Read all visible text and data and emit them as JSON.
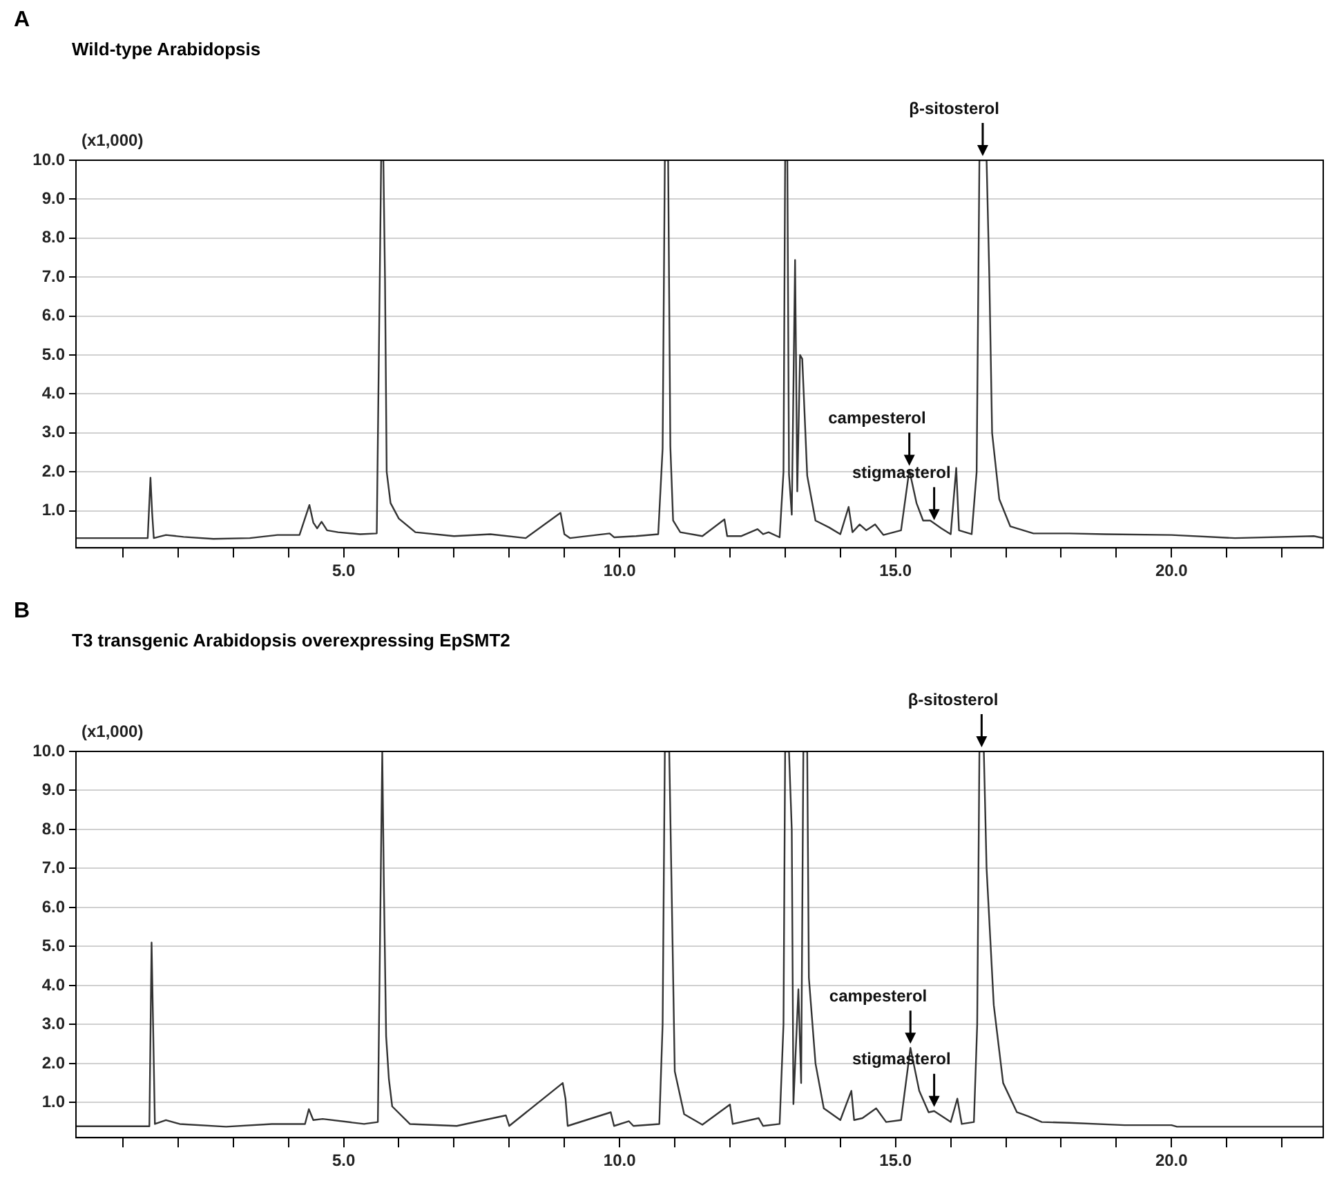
{
  "chart_data": [
    {
      "type": "line",
      "title": "A",
      "subtitle": "Wild-type Arabidopsis",
      "ylabel": "(x1,000)",
      "marker": "none",
      "line_style": "solid",
      "grid": "y",
      "legend": false,
      "xlim": [
        0.15,
        22.75
      ],
      "ylim": [
        0.05,
        10
      ],
      "xticks": [
        {
          "value": 1,
          "label": null
        },
        {
          "value": 2,
          "label": null
        },
        {
          "value": 3,
          "label": null
        },
        {
          "value": 4,
          "label": null
        },
        {
          "value": 5,
          "label": "5.0"
        },
        {
          "value": 6,
          "label": null
        },
        {
          "value": 7,
          "label": null
        },
        {
          "value": 8,
          "label": null
        },
        {
          "value": 9,
          "label": null
        },
        {
          "value": 10,
          "label": "10.0"
        },
        {
          "value": 11,
          "label": null
        },
        {
          "value": 12,
          "label": null
        },
        {
          "value": 13,
          "label": null
        },
        {
          "value": 14,
          "label": null
        },
        {
          "value": 15,
          "label": "15.0"
        },
        {
          "value": 16,
          "label": null
        },
        {
          "value": 17,
          "label": null
        },
        {
          "value": 18,
          "label": null
        },
        {
          "value": 19,
          "label": null
        },
        {
          "value": 20,
          "label": "20.0"
        },
        {
          "value": 21,
          "label": null
        },
        {
          "value": 22,
          "label": null
        }
      ],
      "yticks": [
        {
          "value": 1,
          "label": "1.0"
        },
        {
          "value": 2,
          "label": "2.0"
        },
        {
          "value": 3,
          "label": "3.0"
        },
        {
          "value": 4,
          "label": "4.0"
        },
        {
          "value": 5,
          "label": "5.0"
        },
        {
          "value": 6,
          "label": "6.0"
        },
        {
          "value": 7,
          "label": "7.0"
        },
        {
          "value": 8,
          "label": "8.0"
        },
        {
          "value": 9,
          "label": "9.0"
        },
        {
          "value": 10,
          "label": "10.0"
        }
      ],
      "series": [
        {
          "color": "#333333",
          "x": [
            0.15,
            1.45,
            1.5,
            1.53,
            1.56,
            1.78,
            2.1,
            2.64,
            3.3,
            3.8,
            4.2,
            4.38,
            4.45,
            4.52,
            4.6,
            4.7,
            4.9,
            5.3,
            5.6,
            5.68,
            5.72,
            5.75,
            5.78,
            5.85,
            6.0,
            6.3,
            7.0,
            7.66,
            8.3,
            8.93,
            9.0,
            9.1,
            9.82,
            9.9,
            10.3,
            10.7,
            10.78,
            10.82,
            10.88,
            10.92,
            10.97,
            11.1,
            11.5,
            11.9,
            11.95,
            12.2,
            12.5,
            12.6,
            12.7,
            12.9,
            12.97,
            13.0,
            13.04,
            13.07,
            13.12,
            13.18,
            13.22,
            13.27,
            13.31,
            13.4,
            13.55,
            13.8,
            14.0,
            14.15,
            14.22,
            14.35,
            14.47,
            14.63,
            14.78,
            15.1,
            15.25,
            15.38,
            15.5,
            15.63,
            15.83,
            16.0,
            16.1,
            16.15,
            16.38,
            16.47,
            16.52,
            16.65,
            16.7,
            16.75,
            16.88,
            17.08,
            17.5,
            18.15,
            18.8,
            20.0,
            21.15,
            22.58,
            22.75
          ],
          "values": [
            0.3,
            0.3,
            1.85,
            0.95,
            0.3,
            0.38,
            0.33,
            0.28,
            0.3,
            0.38,
            0.38,
            1.15,
            0.7,
            0.55,
            0.72,
            0.5,
            0.45,
            0.4,
            0.42,
            10,
            10,
            6.9,
            2.0,
            1.2,
            0.8,
            0.45,
            0.35,
            0.4,
            0.3,
            0.95,
            0.4,
            0.3,
            0.42,
            0.32,
            0.35,
            0.4,
            2.6,
            10,
            10,
            2.65,
            0.75,
            0.45,
            0.35,
            0.78,
            0.35,
            0.35,
            0.53,
            0.4,
            0.45,
            0.32,
            2.0,
            10,
            10,
            1.93,
            0.9,
            7.44,
            1.5,
            5.0,
            4.9,
            1.9,
            0.75,
            0.57,
            0.4,
            1.1,
            0.45,
            0.65,
            0.5,
            0.65,
            0.38,
            0.5,
            2.05,
            1.2,
            0.75,
            0.75,
            0.55,
            0.4,
            2.1,
            0.5,
            0.4,
            2.0,
            10,
            10,
            7.0,
            3.0,
            1.3,
            0.6,
            0.42,
            0.42,
            0.4,
            0.38,
            0.3,
            0.35,
            0.3
          ]
        }
      ],
      "annotations": [
        {
          "text": "β-sitosterol",
          "x": 16.58,
          "y": 10
        },
        {
          "text": "campesterol",
          "x": 15.25,
          "y": 2.05
        },
        {
          "text": "stigmasterol",
          "x": 15.7,
          "y": 0.65
        }
      ]
    },
    {
      "type": "line",
      "title": "B",
      "subtitle": "T3 transgenic Arabidopsis overexpressing EpSMT2",
      "ylabel": "(x1,000)",
      "marker": "none",
      "line_style": "solid",
      "grid": "y",
      "legend": false,
      "xlim": [
        0.15,
        22.75
      ],
      "ylim": [
        0.1,
        10
      ],
      "xticks": [
        {
          "value": 1,
          "label": null
        },
        {
          "value": 2,
          "label": null
        },
        {
          "value": 3,
          "label": null
        },
        {
          "value": 4,
          "label": null
        },
        {
          "value": 5,
          "label": "5.0"
        },
        {
          "value": 6,
          "label": null
        },
        {
          "value": 7,
          "label": null
        },
        {
          "value": 8,
          "label": null
        },
        {
          "value": 9,
          "label": null
        },
        {
          "value": 10,
          "label": "10.0"
        },
        {
          "value": 11,
          "label": null
        },
        {
          "value": 12,
          "label": null
        },
        {
          "value": 13,
          "label": null
        },
        {
          "value": 14,
          "label": null
        },
        {
          "value": 15,
          "label": "15.0"
        },
        {
          "value": 16,
          "label": null
        },
        {
          "value": 17,
          "label": null
        },
        {
          "value": 18,
          "label": null
        },
        {
          "value": 19,
          "label": null
        },
        {
          "value": 20,
          "label": "20.0"
        },
        {
          "value": 21,
          "label": null
        },
        {
          "value": 22,
          "label": null
        }
      ],
      "yticks": [
        {
          "value": 1,
          "label": "1.0"
        },
        {
          "value": 2,
          "label": "2.0"
        },
        {
          "value": 3,
          "label": "3.0"
        },
        {
          "value": 4,
          "label": "4.0"
        },
        {
          "value": 5,
          "label": "5.0"
        },
        {
          "value": 6,
          "label": "6.0"
        },
        {
          "value": 7,
          "label": "7.0"
        },
        {
          "value": 8,
          "label": "8.0"
        },
        {
          "value": 9,
          "label": "9.0"
        },
        {
          "value": 10,
          "label": "10.0"
        }
      ],
      "series": [
        {
          "color": "#333333",
          "x": [
            0.15,
            1.48,
            1.52,
            1.55,
            1.58,
            1.78,
            2.03,
            2.87,
            3.7,
            4.3,
            4.37,
            4.45,
            4.62,
            5.37,
            5.62,
            5.7,
            5.73,
            5.77,
            5.82,
            5.88,
            6.2,
            7.05,
            7.94,
            8.0,
            8.97,
            9.02,
            9.06,
            9.84,
            9.9,
            10.17,
            10.25,
            10.72,
            10.78,
            10.82,
            10.9,
            11.0,
            11.17,
            11.5,
            12.0,
            12.05,
            12.52,
            12.6,
            12.9,
            12.97,
            13.0,
            13.07,
            13.12,
            13.15,
            13.24,
            13.29,
            13.33,
            13.4,
            13.43,
            13.55,
            13.7,
            14.0,
            14.2,
            14.25,
            14.4,
            14.65,
            14.83,
            15.1,
            15.27,
            15.43,
            15.6,
            15.7,
            16.0,
            16.12,
            16.2,
            16.42,
            16.48,
            16.52,
            16.6,
            16.65,
            16.78,
            16.95,
            17.2,
            17.4,
            17.65,
            18.15,
            19.15,
            20.0,
            20.1,
            22.75
          ],
          "values": [
            0.39,
            0.39,
            5.1,
            2.8,
            0.45,
            0.55,
            0.45,
            0.38,
            0.45,
            0.45,
            0.83,
            0.55,
            0.58,
            0.45,
            0.5,
            10,
            6.5,
            2.7,
            1.6,
            0.9,
            0.45,
            0.4,
            0.67,
            0.4,
            1.5,
            1.1,
            0.4,
            0.75,
            0.4,
            0.52,
            0.4,
            0.45,
            3.0,
            10,
            10,
            1.8,
            0.7,
            0.43,
            0.95,
            0.45,
            0.6,
            0.4,
            0.45,
            3.0,
            10,
            10,
            8.0,
            0.96,
            3.9,
            1.5,
            10,
            10,
            4.2,
            2.0,
            0.85,
            0.55,
            1.3,
            0.55,
            0.6,
            0.85,
            0.5,
            0.55,
            2.4,
            1.3,
            0.75,
            0.78,
            0.5,
            1.1,
            0.45,
            0.5,
            3.0,
            10,
            10,
            7.0,
            3.5,
            1.5,
            0.75,
            0.65,
            0.5,
            0.48,
            0.42,
            0.42,
            0.38,
            0.38
          ]
        }
      ],
      "annotations": [
        {
          "text": "β-sitosterol",
          "x": 16.56,
          "y": 10
        },
        {
          "text": "campesterol",
          "x": 15.27,
          "y": 2.4
        },
        {
          "text": "stigmasterol",
          "x": 15.7,
          "y": 0.78
        }
      ]
    }
  ]
}
